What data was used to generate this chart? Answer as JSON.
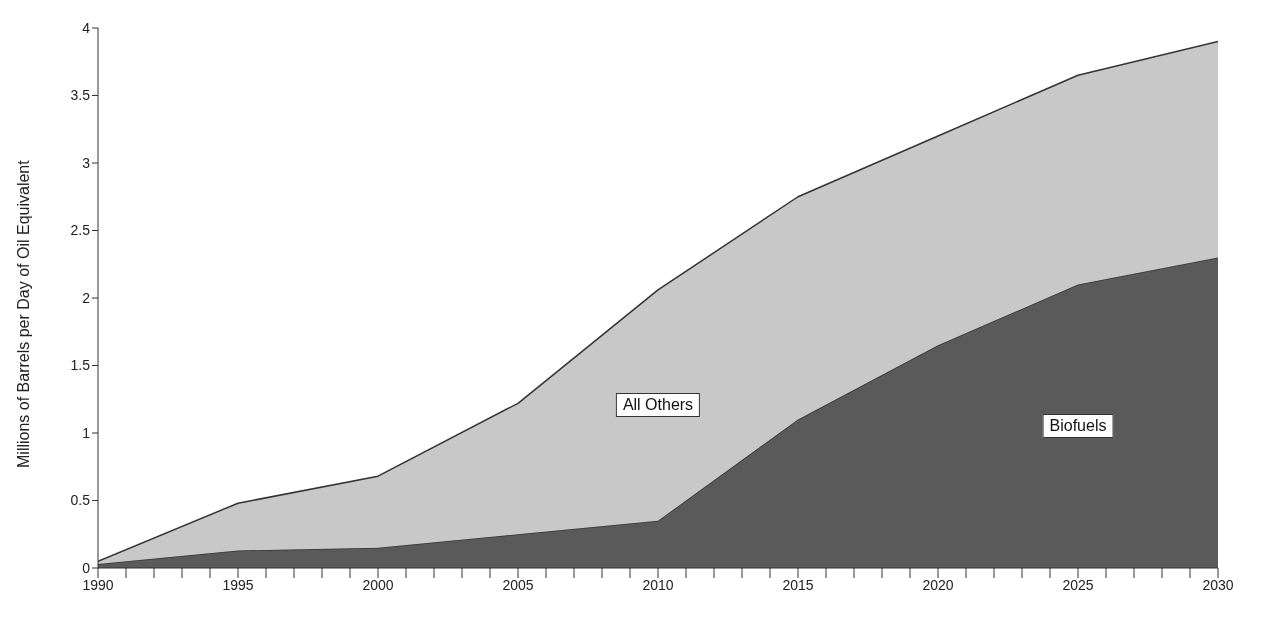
{
  "chart_data": {
    "type": "area",
    "stacked": true,
    "ylabel": "Millions of Barrels per Day of Oil Equivalent",
    "x": [
      1990,
      1995,
      2000,
      2005,
      2010,
      2015,
      2020,
      2025,
      2030
    ],
    "series": [
      {
        "name": "Biofuels",
        "color": "#5a5a5a",
        "values": [
          0.03,
          0.13,
          0.15,
          0.25,
          0.35,
          1.1,
          1.65,
          2.1,
          2.3
        ]
      },
      {
        "name": "All Others",
        "color": "#c8c8c8",
        "values": [
          0.02,
          0.35,
          0.53,
          0.97,
          1.71,
          1.65,
          1.55,
          1.55,
          1.6
        ]
      }
    ],
    "xlim": [
      1990,
      2030
    ],
    "xticks": [
      1990,
      {
        "value": 1991,
        "label": null
      },
      {
        "value": 1992,
        "label": null
      },
      {
        "value": 1993,
        "label": null
      },
      {
        "value": 1994,
        "label": null
      },
      1995,
      {
        "value": 1996,
        "label": null
      },
      {
        "value": 1997,
        "label": null
      },
      {
        "value": 1998,
        "label": null
      },
      {
        "value": 1999,
        "label": null
      },
      2000,
      {
        "value": 2001,
        "label": null
      },
      {
        "value": 2002,
        "label": null
      },
      {
        "value": 2003,
        "label": null
      },
      {
        "value": 2004,
        "label": null
      },
      2005,
      {
        "value": 2006,
        "label": null
      },
      {
        "value": 2007,
        "label": null
      },
      {
        "value": 2008,
        "label": null
      },
      {
        "value": 2009,
        "label": null
      },
      2010,
      {
        "value": 2011,
        "label": null
      },
      {
        "value": 2012,
        "label": null
      },
      {
        "value": 2013,
        "label": null
      },
      {
        "value": 2014,
        "label": null
      },
      2015,
      {
        "value": 2016,
        "label": null
      },
      {
        "value": 2017,
        "label": null
      },
      {
        "value": 2018,
        "label": null
      },
      {
        "value": 2019,
        "label": null
      },
      2020,
      {
        "value": 2021,
        "label": null
      },
      {
        "value": 2022,
        "label": null
      },
      {
        "value": 2023,
        "label": null
      },
      {
        "value": 2024,
        "label": null
      },
      2025,
      {
        "value": 2026,
        "label": null
      },
      {
        "value": 2027,
        "label": null
      },
      {
        "value": 2028,
        "label": null
      },
      {
        "value": 2029,
        "label": null
      },
      2030
    ],
    "ylim": [
      0,
      4
    ],
    "yticks": [
      0,
      0.5,
      1,
      1.5,
      2,
      2.5,
      3,
      3.5,
      4
    ],
    "grid": false,
    "legend": false
  }
}
